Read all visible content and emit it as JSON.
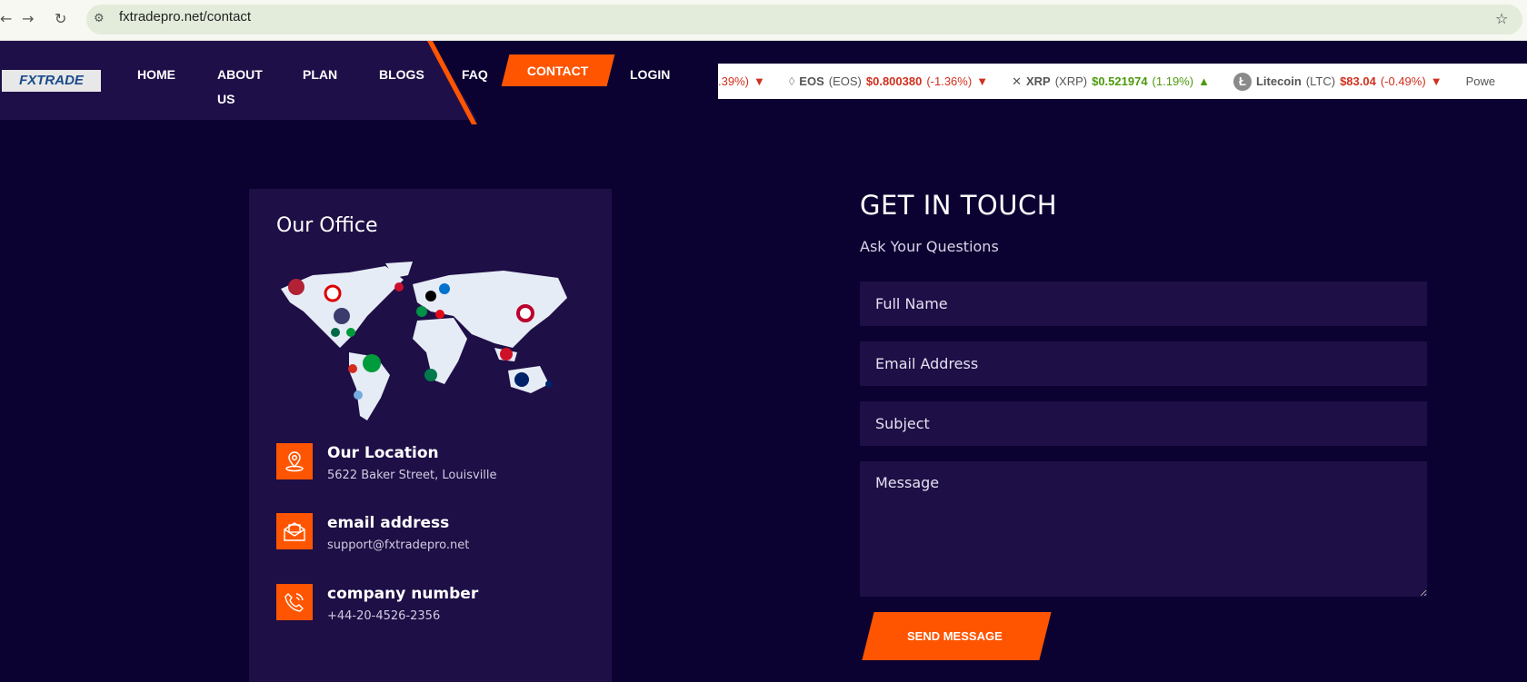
{
  "browser": {
    "url": "fxtradepro.net/contact"
  },
  "nav": {
    "logo": "FXTRADE",
    "items": [
      "HOME",
      "ABOUT US",
      "PLAN",
      "BLOGS",
      "FAQ",
      "CONTACT",
      "LOGIN"
    ],
    "active": "CONTACT"
  },
  "ticker": [
    {
      "name": "",
      "symbol": "",
      "price": "",
      "change": ".39%)",
      "dir": "down"
    },
    {
      "name": "EOS",
      "symbol": "(EOS)",
      "price": "$0.800380",
      "change": "(-1.36%)",
      "dir": "down"
    },
    {
      "name": "XRP",
      "symbol": "(XRP)",
      "price": "$0.521974",
      "change": "(1.19%)",
      "dir": "up"
    },
    {
      "name": "Litecoin",
      "symbol": "(LTC)",
      "price": "$83.04",
      "change": "(-0.49%)",
      "dir": "down"
    },
    {
      "name": "Powe",
      "symbol": "",
      "price": "",
      "change": "",
      "dir": ""
    }
  ],
  "office": {
    "title": "Our Office",
    "items": [
      {
        "icon": "location-pin-icon",
        "label": "Our Location",
        "value": "5622 Baker Street, Louisville"
      },
      {
        "icon": "envelope-icon",
        "label": "email address",
        "value": "support@fxtradepro.net"
      },
      {
        "icon": "phone-icon",
        "label": "company number",
        "value": "+44-20-4526-2356"
      }
    ]
  },
  "form": {
    "title": "GET IN TOUCH",
    "subtitle": "Ask Your Questions",
    "name_ph": "Full Name",
    "email_ph": "Email Address",
    "subject_ph": "Subject",
    "message_ph": "Message",
    "send": "SEND MESSAGE"
  },
  "colors": {
    "accent": "#ff5500",
    "bg": "#0c0231",
    "panel": "#1e0f46",
    "up": "#4c9a0e",
    "down": "#d0301e"
  }
}
